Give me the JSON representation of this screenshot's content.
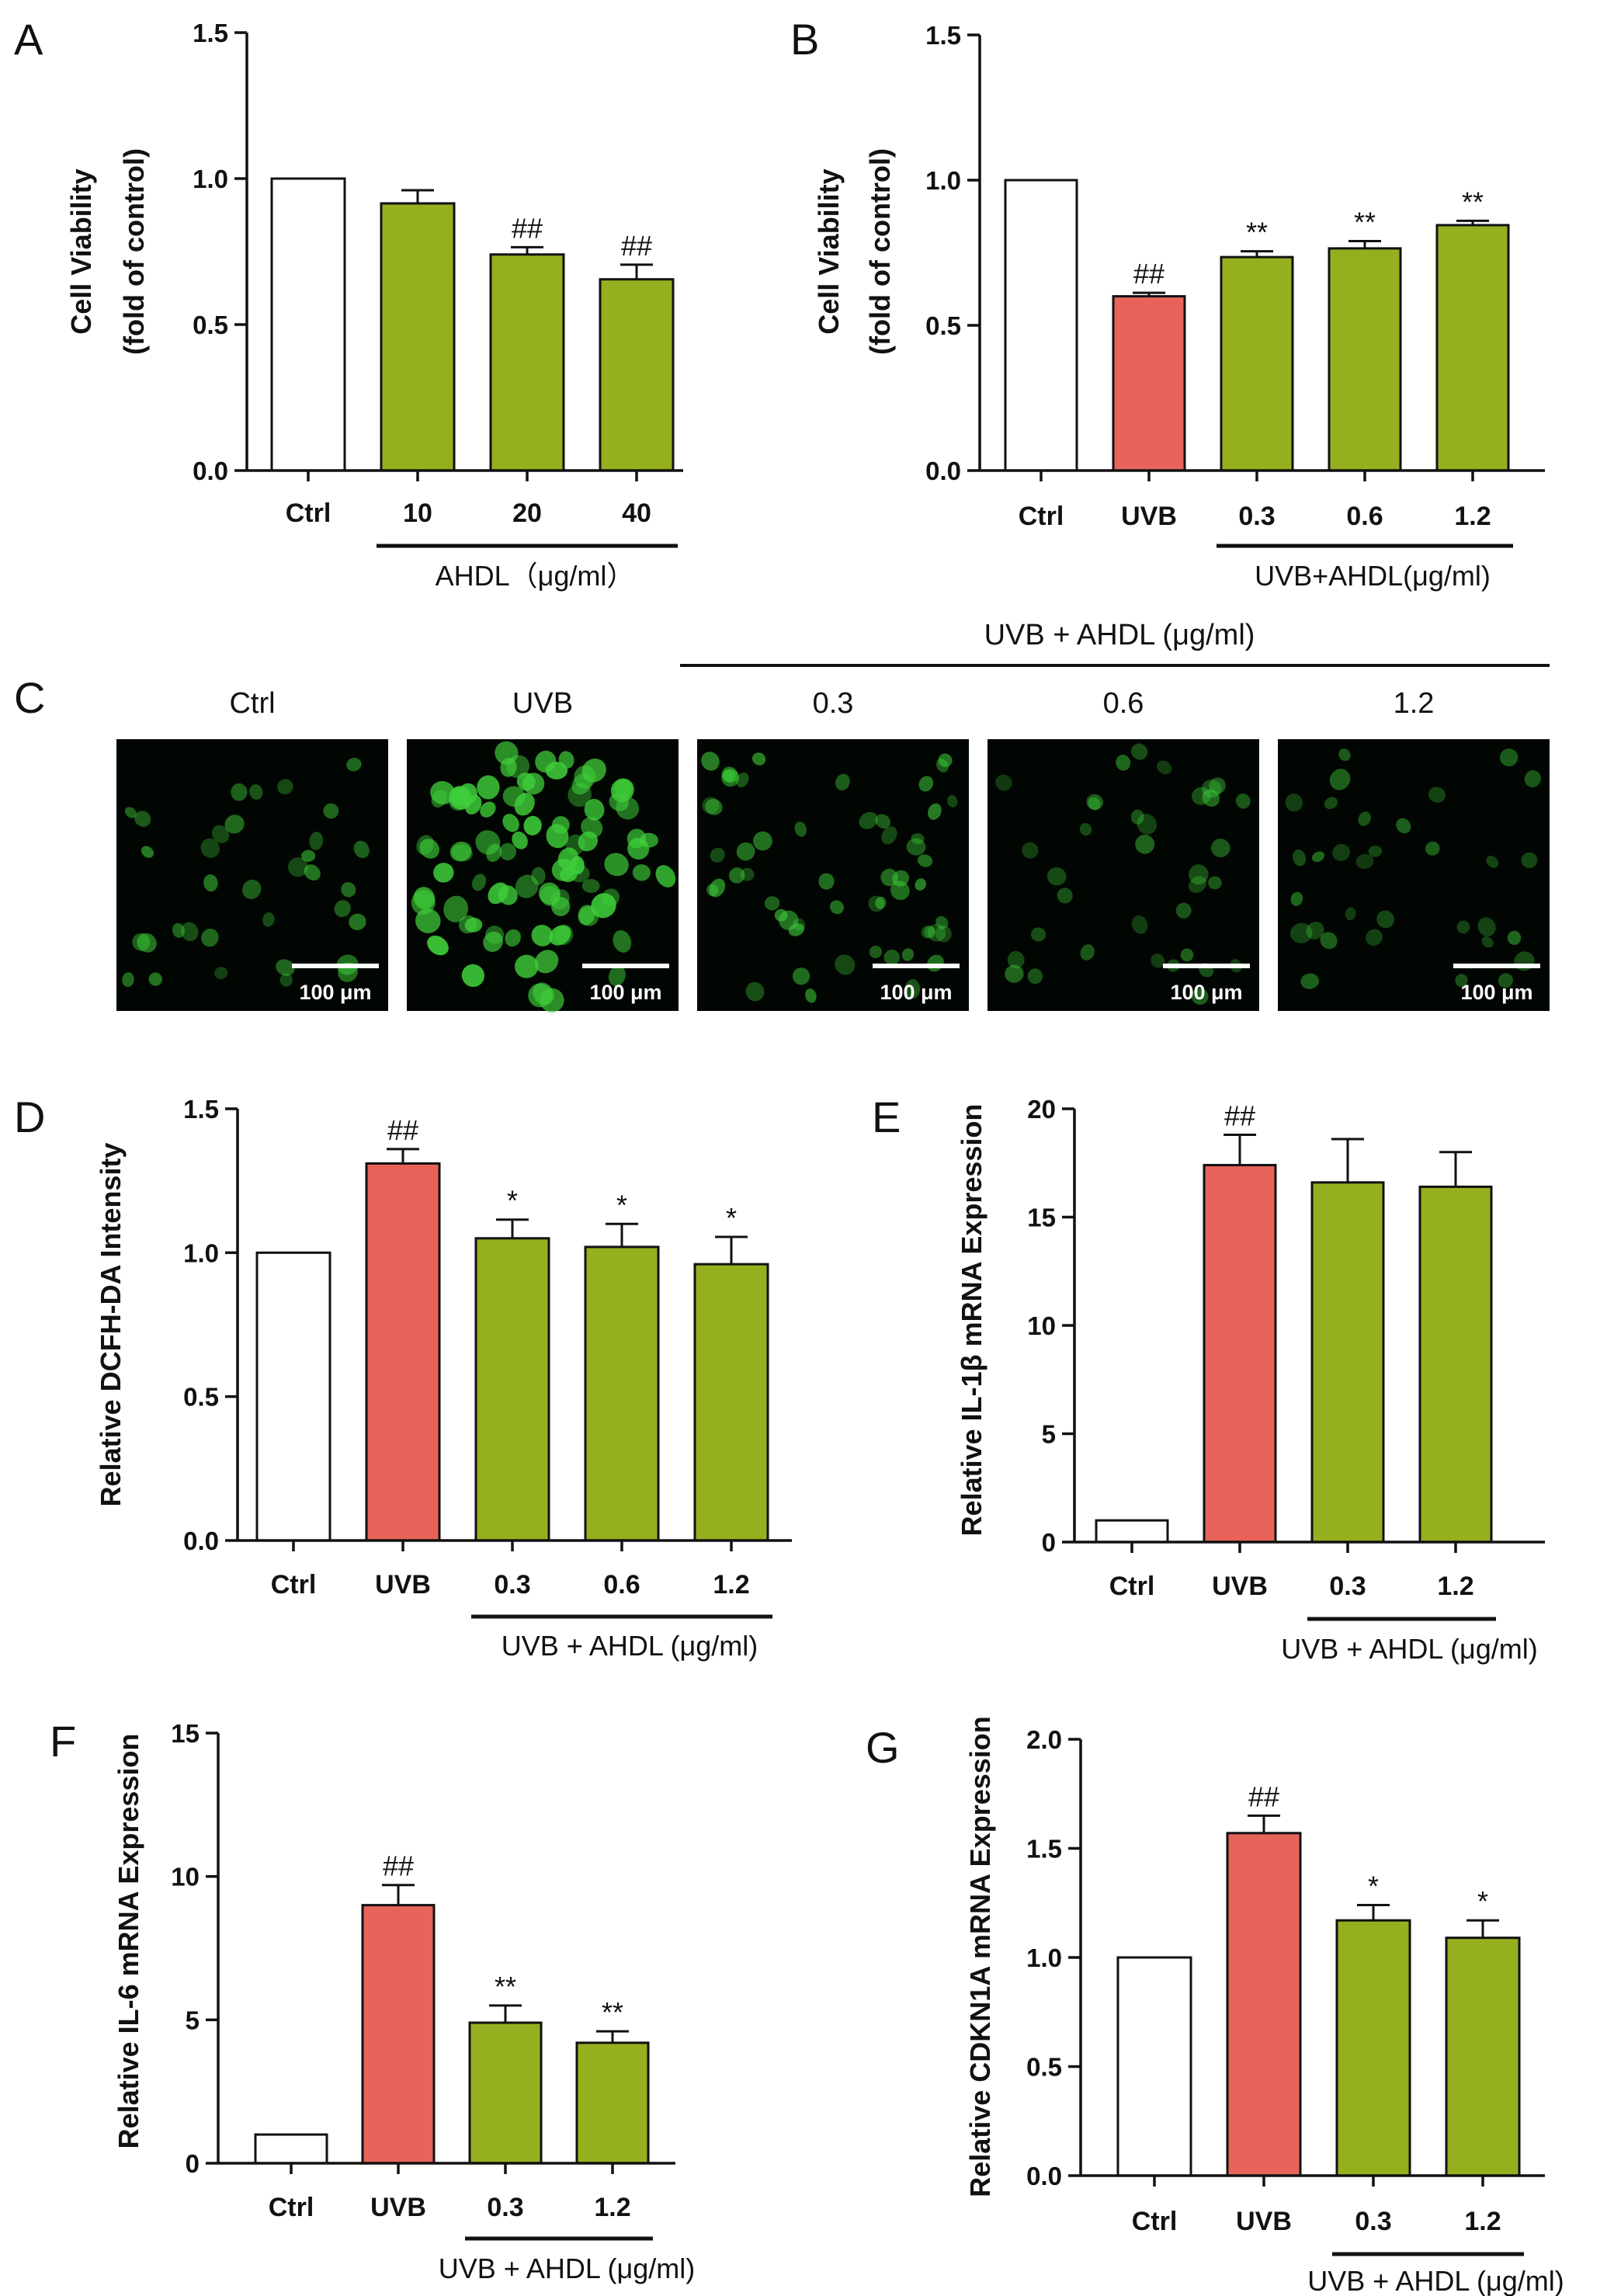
{
  "colors": {
    "ctrl": "#ffffff",
    "uvb": "#e8645a",
    "ahdl": "#95b01f",
    "axis": "#111111",
    "micro_bg": "#020602",
    "cell": "#3fcf3a"
  },
  "chart_data": [
    {
      "id": "A",
      "type": "bar",
      "panel_label": "A",
      "ylabel_lines": [
        "Cell Viability",
        "(fold of control)"
      ],
      "ylim": [
        0,
        1.5
      ],
      "yticks": [
        "0.0",
        "0.5",
        "1.0",
        "1.5"
      ],
      "ytick_values": [
        0,
        0.5,
        1.0,
        1.5
      ],
      "categories": [
        "Ctrl",
        "10",
        "20",
        "40"
      ],
      "values": [
        1.0,
        0.915,
        0.74,
        0.655
      ],
      "errors": [
        0,
        0.045,
        0.025,
        0.05
      ],
      "bar_colors": [
        "ctrl",
        "ahdl",
        "ahdl",
        "ahdl"
      ],
      "annotations": [
        "",
        "",
        "##",
        "##"
      ],
      "group": {
        "label": "AHDL（μg/ml）",
        "from": 1,
        "to": 3
      }
    },
    {
      "id": "B",
      "type": "bar",
      "panel_label": "B",
      "ylabel_lines": [
        "Cell Viability",
        "(fold of control)"
      ],
      "ylim": [
        0,
        1.5
      ],
      "yticks": [
        "0.0",
        "0.5",
        "1.0",
        "1.5"
      ],
      "ytick_values": [
        0,
        0.5,
        1.0,
        1.5
      ],
      "categories": [
        "Ctrl",
        "UVB",
        "0.3",
        "0.6",
        "1.2"
      ],
      "values": [
        1.0,
        0.6,
        0.735,
        0.765,
        0.845
      ],
      "errors": [
        0,
        0.012,
        0.02,
        0.025,
        0.015
      ],
      "bar_colors": [
        "ctrl",
        "uvb",
        "ahdl",
        "ahdl",
        "ahdl"
      ],
      "annotations": [
        "",
        "##",
        "**",
        "**",
        "**"
      ],
      "group": {
        "label": "UVB+AHDL(μg/ml)",
        "from": 2,
        "to": 4
      }
    },
    {
      "id": "D",
      "type": "bar",
      "panel_label": "D",
      "ylabel_lines": [
        "Relative DCFH-DA Intensity"
      ],
      "ylim": [
        0,
        1.5
      ],
      "yticks": [
        "0.0",
        "0.5",
        "1.0",
        "1.5"
      ],
      "ytick_values": [
        0,
        0.5,
        1.0,
        1.5
      ],
      "categories": [
        "Ctrl",
        "UVB",
        "0.3",
        "0.6",
        "1.2"
      ],
      "values": [
        1.0,
        1.31,
        1.05,
        1.02,
        0.96
      ],
      "errors": [
        0,
        0.05,
        0.065,
        0.08,
        0.095
      ],
      "bar_colors": [
        "ctrl",
        "uvb",
        "ahdl",
        "ahdl",
        "ahdl"
      ],
      "annotations": [
        "",
        "##",
        "*",
        "*",
        "*"
      ],
      "group": {
        "label": "UVB + AHDL (μg/ml)",
        "from": 2,
        "to": 4
      }
    },
    {
      "id": "E",
      "type": "bar",
      "panel_label": "E",
      "ylabel_lines": [
        "Relative IL-1β mRNA Expression"
      ],
      "ylim": [
        0,
        20
      ],
      "yticks": [
        "0",
        "5",
        "10",
        "15",
        "20"
      ],
      "ytick_values": [
        0,
        5,
        10,
        15,
        20
      ],
      "categories": [
        "Ctrl",
        "UVB",
        "0.3",
        "1.2"
      ],
      "values": [
        1.0,
        17.4,
        16.6,
        16.4
      ],
      "errors": [
        0,
        1.4,
        2.0,
        1.6
      ],
      "bar_colors": [
        "ctrl",
        "uvb",
        "ahdl",
        "ahdl"
      ],
      "annotations": [
        "",
        "##",
        "",
        ""
      ],
      "group": {
        "label": "UVB + AHDL (μg/ml)",
        "from": 2,
        "to": 3
      }
    },
    {
      "id": "F",
      "type": "bar",
      "panel_label": "F",
      "ylabel_lines": [
        "Relative IL-6 mRNA Expression"
      ],
      "ylim": [
        0,
        15
      ],
      "yticks": [
        "0",
        "5",
        "10",
        "15"
      ],
      "ytick_values": [
        0,
        5,
        10,
        15
      ],
      "categories": [
        "Ctrl",
        "UVB",
        "0.3",
        "1.2"
      ],
      "values": [
        1.0,
        9.0,
        4.9,
        4.2
      ],
      "errors": [
        0,
        0.7,
        0.6,
        0.4
      ],
      "bar_colors": [
        "ctrl",
        "uvb",
        "ahdl",
        "ahdl"
      ],
      "annotations": [
        "",
        "##",
        "**",
        "**"
      ],
      "group": {
        "label": "UVB + AHDL (μg/ml)",
        "from": 2,
        "to": 3
      }
    },
    {
      "id": "G",
      "type": "bar",
      "panel_label": "G",
      "ylabel_lines": [
        "Relative CDKN1A mRNA Expression"
      ],
      "ylim": [
        0,
        2.0
      ],
      "yticks": [
        "0.0",
        "0.5",
        "1.0",
        "1.5",
        "2.0"
      ],
      "ytick_values": [
        0,
        0.5,
        1.0,
        1.5,
        2.0
      ],
      "categories": [
        "Ctrl",
        "UVB",
        "0.3",
        "1.2"
      ],
      "values": [
        1.0,
        1.57,
        1.17,
        1.09
      ],
      "errors": [
        0,
        0.08,
        0.07,
        0.08
      ],
      "bar_colors": [
        "ctrl",
        "uvb",
        "ahdl",
        "ahdl"
      ],
      "annotations": [
        "",
        "##",
        "*",
        "*"
      ],
      "group": {
        "label": "UVB + AHDL (μg/ml)",
        "from": 2,
        "to": 3
      }
    }
  ],
  "panel_c": {
    "panel_label": "C",
    "group_label": "UVB + AHDL  (μg/ml)",
    "images": [
      {
        "title": "Ctrl",
        "scale_label": "100 μm",
        "density": 34,
        "brightness": 0.55
      },
      {
        "title": "UVB",
        "scale_label": "100 μm",
        "density": 90,
        "brightness": 1.0
      },
      {
        "title": "0.3",
        "scale_label": "100 μm",
        "density": 55,
        "brightness": 0.6
      },
      {
        "title": "0.6",
        "scale_label": "100 μm",
        "density": 35,
        "brightness": 0.45
      },
      {
        "title": "1.2",
        "scale_label": "100 μm",
        "density": 32,
        "brightness": 0.45
      }
    ]
  }
}
